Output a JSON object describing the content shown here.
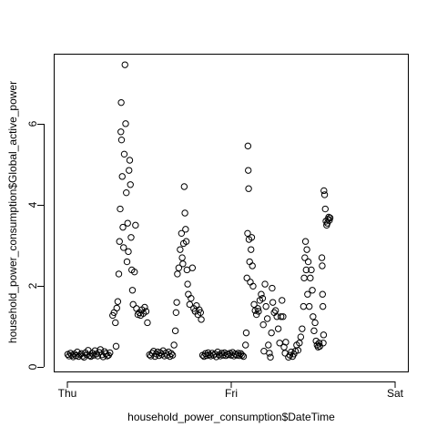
{
  "chart_data": {
    "type": "scatter",
    "title": "",
    "xlabel": "household_power_consumption$DateTime",
    "ylabel": "household_power_consumption$Global_active_power",
    "x_unit": "hours since Thu 00:00",
    "xlim": [
      -1.92,
      49.92
    ],
    "ylim": [
      -0.1,
      7.7
    ],
    "x_ticks": [
      {
        "label": "Thu",
        "value": 0
      },
      {
        "label": "Fri",
        "value": 24
      },
      {
        "label": "Sat",
        "value": 48
      }
    ],
    "y_ticks": [
      {
        "label": "0",
        "value": 0
      },
      {
        "label": "2",
        "value": 2
      },
      {
        "label": "4",
        "value": 4
      },
      {
        "label": "6",
        "value": 6
      }
    ],
    "grid": false,
    "marker": "open-circle",
    "series": [
      {
        "name": "",
        "points": [
          [
            0.0,
            0.32
          ],
          [
            0.2,
            0.28
          ],
          [
            0.4,
            0.35
          ],
          [
            0.6,
            0.3
          ],
          [
            0.8,
            0.26
          ],
          [
            1.0,
            0.33
          ],
          [
            1.2,
            0.29
          ],
          [
            1.4,
            0.38
          ],
          [
            1.6,
            0.27
          ],
          [
            1.8,
            0.31
          ],
          [
            2.0,
            0.34
          ],
          [
            2.2,
            0.28
          ],
          [
            2.4,
            0.25
          ],
          [
            2.6,
            0.36
          ],
          [
            2.8,
            0.31
          ],
          [
            3.0,
            0.42
          ],
          [
            3.2,
            0.29
          ],
          [
            3.4,
            0.27
          ],
          [
            3.6,
            0.35
          ],
          [
            3.8,
            0.3
          ],
          [
            4.0,
            0.41
          ],
          [
            4.2,
            0.33
          ],
          [
            4.4,
            0.28
          ],
          [
            4.6,
            0.37
          ],
          [
            4.8,
            0.44
          ],
          [
            5.0,
            0.31
          ],
          [
            5.2,
            0.26
          ],
          [
            5.4,
            0.39
          ],
          [
            5.6,
            0.34
          ],
          [
            5.8,
            0.28
          ],
          [
            6.0,
            0.3
          ],
          [
            6.2,
            0.36
          ],
          [
            6.6,
            1.28
          ],
          [
            6.8,
            1.35
          ],
          [
            7.0,
            1.1
          ],
          [
            7.1,
            0.52
          ],
          [
            7.2,
            1.46
          ],
          [
            7.35,
            1.62
          ],
          [
            7.5,
            2.3
          ],
          [
            7.6,
            3.1
          ],
          [
            7.7,
            3.9
          ],
          [
            7.8,
            5.8
          ],
          [
            7.85,
            6.52
          ],
          [
            7.9,
            5.6
          ],
          [
            8.0,
            4.7
          ],
          [
            8.1,
            3.45
          ],
          [
            8.2,
            2.95
          ],
          [
            8.3,
            5.25
          ],
          [
            8.4,
            7.45
          ],
          [
            8.5,
            6.0
          ],
          [
            8.6,
            4.3
          ],
          [
            8.7,
            2.6
          ],
          [
            8.8,
            3.55
          ],
          [
            8.9,
            2.85
          ],
          [
            9.0,
            4.85
          ],
          [
            9.1,
            5.1
          ],
          [
            9.2,
            4.5
          ],
          [
            9.3,
            3.2
          ],
          [
            9.4,
            2.4
          ],
          [
            9.5,
            1.9
          ],
          [
            9.6,
            1.55
          ],
          [
            9.8,
            2.35
          ],
          [
            9.95,
            3.5
          ],
          [
            10.1,
            1.45
          ],
          [
            10.3,
            1.3
          ],
          [
            10.5,
            1.35
          ],
          [
            10.7,
            1.28
          ],
          [
            10.9,
            1.42
          ],
          [
            11.1,
            1.33
          ],
          [
            11.3,
            1.48
          ],
          [
            11.5,
            1.38
          ],
          [
            11.7,
            1.1
          ],
          [
            12.0,
            0.31
          ],
          [
            12.2,
            0.28
          ],
          [
            12.4,
            0.35
          ],
          [
            12.6,
            0.4
          ],
          [
            12.8,
            0.27
          ],
          [
            13.0,
            0.33
          ],
          [
            13.2,
            0.38
          ],
          [
            13.4,
            0.29
          ],
          [
            13.6,
            0.36
          ],
          [
            13.8,
            0.32
          ],
          [
            14.0,
            0.41
          ],
          [
            14.2,
            0.28
          ],
          [
            14.4,
            0.35
          ],
          [
            14.6,
            0.3
          ],
          [
            14.8,
            0.38
          ],
          [
            15.0,
            0.27
          ],
          [
            15.2,
            0.34
          ],
          [
            15.4,
            0.3
          ],
          [
            15.6,
            0.55
          ],
          [
            15.8,
            0.9
          ],
          [
            15.9,
            1.35
          ],
          [
            16.0,
            1.6
          ],
          [
            16.1,
            2.3
          ],
          [
            16.3,
            2.45
          ],
          [
            16.5,
            2.9
          ],
          [
            16.7,
            3.3
          ],
          [
            16.8,
            2.7
          ],
          [
            16.9,
            2.55
          ],
          [
            17.0,
            3.05
          ],
          [
            17.1,
            4.45
          ],
          [
            17.2,
            3.8
          ],
          [
            17.3,
            3.4
          ],
          [
            17.4,
            3.1
          ],
          [
            17.5,
            2.4
          ],
          [
            17.6,
            2.05
          ],
          [
            17.7,
            1.8
          ],
          [
            17.9,
            1.55
          ],
          [
            18.1,
            1.7
          ],
          [
            18.3,
            2.45
          ],
          [
            18.5,
            1.45
          ],
          [
            18.7,
            1.38
          ],
          [
            18.9,
            1.52
          ],
          [
            19.1,
            1.3
          ],
          [
            19.3,
            1.42
          ],
          [
            19.5,
            1.35
          ],
          [
            19.6,
            1.18
          ],
          [
            19.8,
            0.3
          ],
          [
            20.0,
            0.27
          ],
          [
            20.2,
            0.34
          ],
          [
            20.4,
            0.29
          ],
          [
            20.6,
            0.36
          ],
          [
            20.8,
            0.31
          ],
          [
            21.0,
            0.28
          ],
          [
            21.2,
            0.35
          ],
          [
            21.4,
            0.3
          ],
          [
            21.6,
            0.33
          ],
          [
            21.8,
            0.26
          ],
          [
            22.0,
            0.38
          ],
          [
            22.2,
            0.31
          ],
          [
            22.4,
            0.28
          ],
          [
            22.6,
            0.35
          ],
          [
            22.8,
            0.3
          ],
          [
            23.0,
            0.36
          ],
          [
            23.2,
            0.29
          ],
          [
            23.4,
            0.33
          ],
          [
            23.6,
            0.31
          ],
          [
            23.8,
            0.35
          ],
          [
            24.0,
            0.3
          ],
          [
            24.2,
            0.37
          ],
          [
            24.4,
            0.28
          ],
          [
            24.6,
            0.33
          ],
          [
            24.8,
            0.3
          ],
          [
            25.0,
            0.35
          ],
          [
            25.2,
            0.29
          ],
          [
            25.4,
            0.34
          ],
          [
            25.6,
            0.3
          ],
          [
            25.8,
            0.27
          ],
          [
            26.1,
            0.55
          ],
          [
            26.2,
            0.85
          ],
          [
            26.3,
            2.2
          ],
          [
            26.4,
            3.3
          ],
          [
            26.45,
            5.45
          ],
          [
            26.5,
            4.85
          ],
          [
            26.55,
            4.4
          ],
          [
            26.6,
            3.15
          ],
          [
            26.7,
            2.6
          ],
          [
            26.8,
            2.1
          ],
          [
            26.9,
            2.9
          ],
          [
            27.0,
            3.2
          ],
          [
            27.1,
            2.5
          ],
          [
            27.2,
            2.0
          ],
          [
            27.35,
            1.55
          ],
          [
            27.5,
            1.4
          ],
          [
            27.7,
            1.3
          ],
          [
            27.9,
            1.45
          ],
          [
            28.0,
            1.38
          ],
          [
            28.2,
            1.65
          ],
          [
            28.4,
            1.8
          ],
          [
            28.6,
            1.7
          ],
          [
            28.7,
            1.05
          ],
          [
            28.8,
            0.4
          ],
          [
            28.95,
            2.05
          ],
          [
            29.1,
            1.5
          ],
          [
            29.3,
            1.2
          ],
          [
            29.45,
            0.55
          ],
          [
            29.6,
            0.35
          ],
          [
            29.75,
            0.25
          ],
          [
            29.9,
            0.85
          ],
          [
            30.0,
            1.95
          ],
          [
            30.1,
            1.6
          ],
          [
            30.3,
            1.35
          ],
          [
            30.5,
            1.4
          ],
          [
            30.7,
            1.25
          ],
          [
            30.9,
            0.95
          ],
          [
            31.1,
            0.6
          ],
          [
            31.3,
            1.25
          ],
          [
            31.45,
            1.65
          ],
          [
            31.6,
            1.25
          ],
          [
            31.75,
            0.5
          ],
          [
            31.9,
            0.35
          ],
          [
            32.0,
            0.62
          ],
          [
            32.4,
            0.25
          ],
          [
            32.6,
            0.3
          ],
          [
            32.8,
            0.38
          ],
          [
            33.0,
            0.27
          ],
          [
            33.2,
            0.33
          ],
          [
            33.4,
            0.4
          ],
          [
            33.6,
            0.55
          ],
          [
            33.8,
            0.42
          ],
          [
            34.0,
            0.6
          ],
          [
            34.2,
            0.75
          ],
          [
            34.4,
            0.95
          ],
          [
            34.6,
            1.5
          ],
          [
            34.7,
            2.2
          ],
          [
            34.8,
            2.7
          ],
          [
            34.9,
            3.1
          ],
          [
            35.0,
            2.4
          ],
          [
            35.1,
            2.9
          ],
          [
            35.2,
            1.8
          ],
          [
            35.3,
            2.6
          ],
          [
            35.45,
            1.5
          ],
          [
            35.6,
            2.2
          ],
          [
            35.75,
            2.4
          ],
          [
            35.9,
            1.9
          ],
          [
            36.0,
            1.25
          ],
          [
            36.15,
            0.9
          ],
          [
            36.3,
            1.1
          ],
          [
            36.45,
            0.65
          ],
          [
            36.6,
            0.55
          ],
          [
            36.75,
            0.5
          ],
          [
            36.9,
            0.6
          ],
          [
            37.0,
            0.52
          ],
          [
            37.3,
            2.7
          ],
          [
            37.35,
            2.5
          ],
          [
            37.4,
            1.8
          ],
          [
            37.45,
            1.5
          ],
          [
            37.5,
            0.6
          ],
          [
            37.55,
            0.8
          ],
          [
            37.6,
            4.35
          ],
          [
            37.7,
            4.25
          ],
          [
            37.8,
            3.9
          ],
          [
            37.9,
            3.6
          ],
          [
            38.0,
            3.5
          ],
          [
            38.1,
            3.55
          ],
          [
            38.2,
            3.65
          ],
          [
            38.3,
            3.7
          ],
          [
            38.4,
            3.62
          ],
          [
            38.5,
            3.68
          ]
        ]
      }
    ]
  }
}
